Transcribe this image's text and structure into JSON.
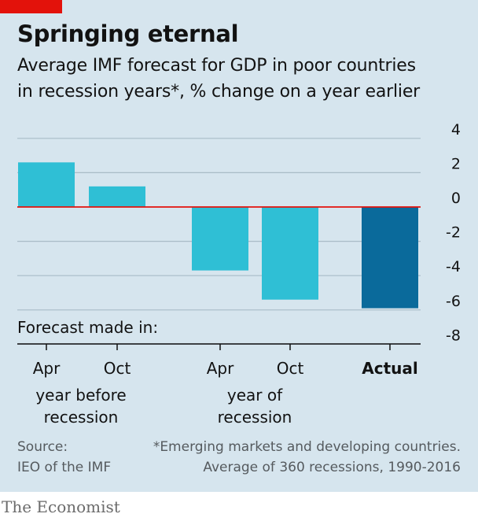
{
  "header": {
    "title": "Springing eternal",
    "subtitle_line1": "Average IMF forecast for GDP in poor countries",
    "subtitle_line2": "in recession years*, % change on a year earlier"
  },
  "chart_data": {
    "type": "bar",
    "title": "Springing eternal",
    "subtitle": "Average IMF forecast for GDP in poor countries in recession years*, % change on a year earlier",
    "categories": [
      "Apr",
      "Oct",
      "Apr",
      "Oct",
      "Actual"
    ],
    "groups": [
      {
        "label_line1": "year before",
        "label_line2": "recession",
        "categories": [
          "Apr",
          "Oct"
        ]
      },
      {
        "label_line1": "year of",
        "label_line2": "recession",
        "categories": [
          "Apr",
          "Oct"
        ]
      }
    ],
    "values": [
      2.6,
      1.2,
      -3.7,
      -5.4,
      -5.9
    ],
    "bar_colors": [
      "#2fbfd5",
      "#2fbfd5",
      "#2fbfd5",
      "#2fbfd5",
      "#0a6a9b"
    ],
    "ylim": [
      -8,
      4
    ],
    "yticks": [
      4,
      2,
      0,
      -2,
      -4,
      -6,
      -8
    ],
    "xaxis_label": "Forecast made in:",
    "grid": true,
    "zero_line_color": "#e3120b"
  },
  "footer": {
    "source_label": "Source:",
    "source_org": "IEO of the IMF",
    "footnote_line1": "*Emerging markets and developing countries.",
    "footnote_line2": "Average of 360 recessions, 1990-2016",
    "brand": "The Economist"
  },
  "colors": {
    "background": "#d6e5ee",
    "accent_red": "#e3120b",
    "bar_forecast": "#2fbfd5",
    "bar_actual": "#0a6a9b"
  }
}
